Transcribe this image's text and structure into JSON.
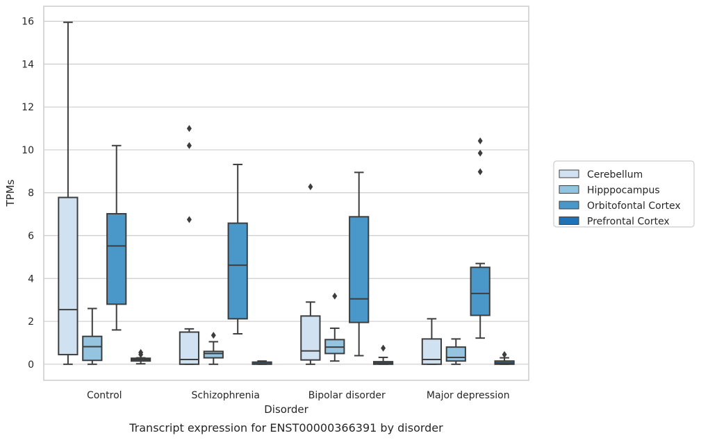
{
  "chart_data": {
    "type": "boxplot",
    "caption": "Transcript expression for ENST00000366391 by disorder",
    "xlabel": "Disorder",
    "ylabel": "TPMs",
    "ylim": [
      -0.75,
      16.7
    ],
    "yticks": [
      0,
      2,
      4,
      6,
      8,
      10,
      12,
      14,
      16
    ],
    "grid": "horizontal",
    "legend_position": "right",
    "categories": [
      "Control",
      "Schizophrenia",
      "Bipolar disorder",
      "Major depression"
    ],
    "series": [
      {
        "name": "Cerebellum",
        "color": "#d0e1f2",
        "boxes": [
          {
            "whislo": 0.0,
            "q1": 0.45,
            "med": 2.55,
            "q3": 7.78,
            "whishi": 15.95,
            "fliers": []
          },
          {
            "whislo": 0.0,
            "q1": 0.0,
            "med": 0.22,
            "q3": 1.5,
            "whishi": 1.65,
            "fliers": [
              6.75,
              10.2,
              11.0
            ]
          },
          {
            "whislo": 0.0,
            "q1": 0.2,
            "med": 0.62,
            "q3": 2.25,
            "whishi": 2.9,
            "fliers": [
              8.28
            ]
          },
          {
            "whislo": 0.0,
            "q1": 0.0,
            "med": 0.22,
            "q3": 1.18,
            "whishi": 2.12,
            "fliers": []
          }
        ]
      },
      {
        "name": "Hipppocampus",
        "color": "#94c4df",
        "boxes": [
          {
            "whislo": 0.0,
            "q1": 0.18,
            "med": 0.82,
            "q3": 1.3,
            "whishi": 2.6,
            "fliers": []
          },
          {
            "whislo": 0.0,
            "q1": 0.3,
            "med": 0.5,
            "q3": 0.6,
            "whishi": 1.05,
            "fliers": [
              1.35
            ]
          },
          {
            "whislo": 0.15,
            "q1": 0.5,
            "med": 0.8,
            "q3": 1.15,
            "whishi": 1.68,
            "fliers": [
              3.18
            ]
          },
          {
            "whislo": 0.0,
            "q1": 0.15,
            "med": 0.32,
            "q3": 0.8,
            "whishi": 1.18,
            "fliers": []
          }
        ]
      },
      {
        "name": "Orbitofontal Cortex",
        "color": "#4a98c9",
        "boxes": [
          {
            "whislo": 1.6,
            "q1": 2.8,
            "med": 5.52,
            "q3": 7.02,
            "whishi": 10.2,
            "fliers": []
          },
          {
            "whislo": 1.42,
            "q1": 2.12,
            "med": 4.62,
            "q3": 6.58,
            "whishi": 9.32,
            "fliers": []
          },
          {
            "whislo": 0.4,
            "q1": 1.95,
            "med": 3.05,
            "q3": 6.88,
            "whishi": 8.95,
            "fliers": []
          },
          {
            "whislo": 1.22,
            "q1": 2.28,
            "med": 3.3,
            "q3": 4.52,
            "whishi": 4.7,
            "fliers": [
              8.98,
              9.85,
              10.42
            ]
          }
        ]
      },
      {
        "name": "Prefrontal Cortex",
        "color": "#2171b5",
        "boxes": [
          {
            "whislo": 0.02,
            "q1": 0.15,
            "med": 0.22,
            "q3": 0.28,
            "whishi": 0.3,
            "fliers": [
              0.45,
              0.55
            ]
          },
          {
            "whislo": 0.0,
            "q1": 0.0,
            "med": 0.02,
            "q3": 0.1,
            "whishi": 0.15,
            "fliers": []
          },
          {
            "whislo": 0.0,
            "q1": 0.0,
            "med": 0.05,
            "q3": 0.12,
            "whishi": 0.32,
            "fliers": [
              0.75
            ]
          },
          {
            "whislo": 0.0,
            "q1": 0.0,
            "med": 0.05,
            "q3": 0.15,
            "whishi": 0.3,
            "fliers": [
              0.45
            ]
          }
        ]
      }
    ]
  }
}
